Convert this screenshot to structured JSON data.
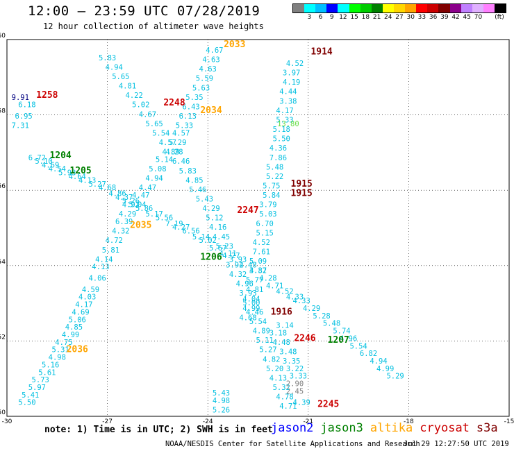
{
  "header": {
    "title": "12:00 – 23:59 UTC 07/28/2019",
    "subtitle": "12 hour collection of altimeter wave heights"
  },
  "colorbar": {
    "colors": [
      "#808080",
      "#00ffff",
      "#00bfff",
      "#0000ff",
      "#00ffff",
      "#00ff00",
      "#00cc00",
      "#008000",
      "#ffff00",
      "#ffd700",
      "#ffa500",
      "#ff0000",
      "#cc0000",
      "#800000",
      "#8b008b",
      "#c080ff",
      "#e0b0ff",
      "#ff80ff",
      "#000000"
    ],
    "ticks": [
      "3",
      "6",
      "9",
      "12",
      "15",
      "18",
      "21",
      "24",
      "27",
      "30",
      "33",
      "36",
      "39",
      "42",
      "45",
      "70"
    ],
    "unit": "(ft)"
  },
  "map": {
    "lat_ticks": [
      "60",
      "58",
      "56",
      "54",
      "52",
      "50"
    ],
    "lon_ticks": [
      "-30",
      "-27",
      "-24",
      "-21",
      "-18",
      "-15"
    ],
    "lon_range": [
      -30,
      -15
    ],
    "lat_range": [
      50,
      60
    ]
  },
  "chart_data": {
    "type": "scatter",
    "tracks": [
      {
        "name": "track-nw-se",
        "color": "#00bfe0",
        "points": [
          [
            -29.4,
            58.2,
            "6.18"
          ],
          [
            -29.5,
            57.9,
            "6.95"
          ],
          [
            -29.6,
            57.65,
            "7.31"
          ],
          [
            -29.1,
            56.8,
            "6.72"
          ],
          [
            -28.9,
            56.7,
            "5.10"
          ],
          [
            -28.7,
            56.6,
            "4.69"
          ],
          [
            -28.5,
            56.5,
            "4.54"
          ],
          [
            -28.2,
            56.4,
            "5.93"
          ],
          [
            -27.9,
            56.3,
            "4.64"
          ],
          [
            -27.6,
            56.2,
            "4.13"
          ],
          [
            -27.3,
            56.1,
            "5.27"
          ],
          [
            -27.0,
            56.0,
            "4.68"
          ],
          [
            -26.7,
            55.85,
            "4.86"
          ],
          [
            -26.5,
            55.75,
            "4.37"
          ],
          [
            -26.3,
            55.65,
            "5.26"
          ],
          [
            -26.1,
            55.55,
            "5.04"
          ],
          [
            -25.9,
            55.45,
            "5.86"
          ],
          [
            -25.6,
            55.3,
            "5.17"
          ],
          [
            -25.3,
            55.2,
            "5.56"
          ],
          [
            -25.0,
            55.05,
            "7.19"
          ],
          [
            -24.8,
            54.95,
            "4.27"
          ],
          [
            -24.5,
            54.85,
            "6.56"
          ],
          [
            -24.2,
            54.7,
            "5.14"
          ],
          [
            -24.0,
            54.6,
            "5.02"
          ],
          [
            -23.7,
            54.4,
            "5.67"
          ],
          [
            -23.4,
            54.25,
            "4.11"
          ],
          [
            -23.1,
            54.1,
            "3.93"
          ],
          [
            -22.8,
            53.95,
            "4.48"
          ],
          [
            -22.5,
            53.8,
            "4.32"
          ],
          [
            -22.2,
            53.6,
            "4.28"
          ],
          [
            -22.0,
            53.4,
            "4.71"
          ],
          [
            -21.7,
            53.25,
            "4.52"
          ],
          [
            -21.4,
            53.1,
            "4.33"
          ],
          [
            -21.2,
            53.0,
            "4.33"
          ],
          [
            -20.9,
            52.8,
            "4.29"
          ],
          [
            -20.6,
            52.6,
            "5.28"
          ],
          [
            -20.3,
            52.4,
            "5.48"
          ],
          [
            -20.0,
            52.2,
            "5.74"
          ],
          [
            -19.8,
            52.0,
            "4.96"
          ],
          [
            -19.5,
            51.8,
            "5.54"
          ],
          [
            -19.2,
            51.6,
            "6.82"
          ],
          [
            -18.9,
            51.4,
            "4.94"
          ],
          [
            -18.7,
            51.2,
            "4.99"
          ],
          [
            -18.4,
            51.0,
            "5.29"
          ]
        ]
      },
      {
        "name": "track-sw-ne",
        "color": "#00bfe0",
        "points": [
          [
            -29.4,
            50.3,
            "5.50"
          ],
          [
            -29.3,
            50.5,
            "5.41"
          ],
          [
            -29.1,
            50.7,
            "5.97"
          ],
          [
            -29.0,
            50.9,
            "5.73"
          ],
          [
            -28.8,
            51.1,
            "5.61"
          ],
          [
            -28.7,
            51.3,
            "5.16"
          ],
          [
            -28.5,
            51.5,
            "4.98"
          ],
          [
            -28.4,
            51.7,
            "5.31"
          ],
          [
            -28.3,
            51.9,
            "4.75"
          ],
          [
            -28.1,
            52.1,
            "4.99"
          ],
          [
            -28.0,
            52.3,
            "4.85"
          ],
          [
            -27.9,
            52.5,
            "5.06"
          ],
          [
            -27.8,
            52.7,
            "4.69"
          ],
          [
            -27.7,
            52.9,
            "4.17"
          ],
          [
            -27.6,
            53.1,
            "4.03"
          ],
          [
            -27.5,
            53.3,
            "4.59"
          ],
          [
            -27.3,
            53.6,
            "4.06"
          ],
          [
            -27.2,
            53.9,
            "4.13"
          ],
          [
            -27.1,
            54.1,
            "4.14"
          ],
          [
            -26.9,
            54.35,
            "5.81"
          ],
          [
            -26.8,
            54.6,
            "4.72"
          ],
          [
            -26.6,
            54.85,
            "4.32"
          ],
          [
            -26.5,
            55.1,
            "6.39"
          ],
          [
            -26.4,
            55.3,
            "4.29"
          ],
          [
            -26.3,
            55.55,
            "4.91"
          ],
          [
            -26.0,
            55.8,
            "4.47"
          ],
          [
            -25.8,
            56.0,
            "4.47"
          ],
          [
            -25.6,
            56.25,
            "4.94"
          ],
          [
            -25.5,
            56.5,
            "5.08"
          ],
          [
            -25.3,
            56.75,
            "5.14"
          ],
          [
            -25.1,
            56.95,
            "4.89"
          ],
          [
            -24.9,
            57.2,
            "5.29"
          ],
          [
            -24.8,
            57.45,
            "4.57"
          ],
          [
            -24.7,
            57.65,
            "5.33"
          ],
          [
            -24.6,
            57.9,
            "6.13"
          ],
          [
            -24.5,
            58.15,
            "6.43"
          ],
          [
            -24.4,
            58.4,
            "5.35"
          ],
          [
            -24.2,
            58.65,
            "5.63"
          ],
          [
            -24.1,
            58.9,
            "5.59"
          ],
          [
            -24.0,
            59.15,
            "4.63"
          ],
          [
            -23.9,
            59.4,
            "4.63"
          ],
          [
            -23.8,
            59.65,
            "4.67"
          ]
        ]
      },
      {
        "name": "track-ne-sw",
        "color": "#00bfe0",
        "points": [
          [
            -27.0,
            59.45,
            "5.83"
          ],
          [
            -26.8,
            59.2,
            "4.94"
          ],
          [
            -26.6,
            58.95,
            "5.65"
          ],
          [
            -26.4,
            58.7,
            "4.81"
          ],
          [
            -26.2,
            58.45,
            "4.22"
          ],
          [
            -26.0,
            58.2,
            "5.02"
          ],
          [
            -25.8,
            57.95,
            "4.67"
          ],
          [
            -25.6,
            57.7,
            "5.65"
          ],
          [
            -25.4,
            57.45,
            "5.54"
          ],
          [
            -25.2,
            57.2,
            "4.57"
          ],
          [
            -25.0,
            56.95,
            "4.28"
          ],
          [
            -24.8,
            56.7,
            "6.46"
          ],
          [
            -24.6,
            56.45,
            "5.83"
          ],
          [
            -24.4,
            56.2,
            "4.85"
          ],
          [
            -24.3,
            55.95,
            "5.46"
          ],
          [
            -24.1,
            55.7,
            "5.43"
          ],
          [
            -23.9,
            55.45,
            "4.29"
          ],
          [
            -23.8,
            55.2,
            "5.12"
          ],
          [
            -23.7,
            54.95,
            "4.16"
          ],
          [
            -23.6,
            54.7,
            "4.45"
          ],
          [
            -23.5,
            54.45,
            "5.23"
          ],
          [
            -23.3,
            54.2,
            "4.27"
          ],
          [
            -23.2,
            53.95,
            "3.92"
          ],
          [
            -23.1,
            53.7,
            "4.32"
          ],
          [
            -22.9,
            53.45,
            "4.96"
          ],
          [
            -22.8,
            53.2,
            "3.93"
          ],
          [
            -22.7,
            52.95,
            "5.00"
          ],
          [
            -22.6,
            52.7,
            "4.46"
          ],
          [
            -22.5,
            52.45,
            "5.54"
          ],
          [
            -22.4,
            52.2,
            "4.89"
          ],
          [
            -22.3,
            51.95,
            "5.11"
          ],
          [
            -22.2,
            51.7,
            "5.27"
          ],
          [
            -22.1,
            51.45,
            "4.82"
          ],
          [
            -22.0,
            51.2,
            "5.20"
          ],
          [
            -21.9,
            50.95,
            "4.13"
          ],
          [
            -21.8,
            50.7,
            "5.32"
          ],
          [
            -21.7,
            50.45,
            "4.78"
          ],
          [
            -21.6,
            50.2,
            "4.71"
          ]
        ]
      },
      {
        "name": "track-ascending-east",
        "color": "#00bfe0",
        "points": [
          [
            -21.4,
            59.3,
            "4.52"
          ],
          [
            -21.5,
            59.05,
            "3.97"
          ],
          [
            -21.5,
            58.8,
            "4.19"
          ],
          [
            -21.6,
            58.55,
            "4.44"
          ],
          [
            -21.6,
            58.3,
            "3.38"
          ],
          [
            -21.7,
            58.05,
            "4.17"
          ],
          [
            -21.7,
            57.8,
            "5.33"
          ],
          [
            -21.8,
            57.55,
            "5.18"
          ],
          [
            -21.8,
            57.3,
            "5.50"
          ],
          [
            -21.9,
            57.05,
            "4.36"
          ],
          [
            -21.9,
            56.8,
            "7.86"
          ],
          [
            -22.0,
            56.55,
            "5.48"
          ],
          [
            -22.0,
            56.3,
            "5.22"
          ],
          [
            -22.1,
            56.05,
            "5.75"
          ],
          [
            -22.1,
            55.8,
            "5.84"
          ],
          [
            -22.2,
            55.55,
            "3.79"
          ],
          [
            -22.2,
            55.3,
            "5.03"
          ],
          [
            -22.3,
            55.05,
            "6.70"
          ],
          [
            -22.3,
            54.8,
            "5.15"
          ],
          [
            -22.4,
            54.55,
            "4.52"
          ],
          [
            -22.4,
            54.3,
            "7.61"
          ],
          [
            -22.5,
            54.05,
            "5.09"
          ],
          [
            -22.5,
            53.8,
            "3.87"
          ],
          [
            -22.6,
            53.55,
            "5.77"
          ],
          [
            -22.6,
            53.3,
            "4.81"
          ],
          [
            -22.7,
            53.05,
            "4.04"
          ],
          [
            -22.7,
            52.8,
            "4.99"
          ],
          [
            -22.8,
            52.55,
            "4.68"
          ]
        ]
      }
    ],
    "passes": [
      {
        "label": "1258",
        "sat": "cryosat",
        "lon": -28.8,
        "lat": 58.45
      },
      {
        "label": "1204",
        "sat": "jason3",
        "lon": -28.4,
        "lat": 56.85
      },
      {
        "label": "1205",
        "sat": "jason3",
        "lon": -27.8,
        "lat": 56.45
      },
      {
        "label": "2033",
        "sat": "altika",
        "lon": -23.2,
        "lat": 59.8
      },
      {
        "label": "1914",
        "sat": "s3a",
        "lon": -20.6,
        "lat": 59.6
      },
      {
        "label": "2248",
        "sat": "cryosat",
        "lon": -25.0,
        "lat": 58.25
      },
      {
        "label": "2034",
        "sat": "altika",
        "lon": -23.9,
        "lat": 58.05
      },
      {
        "label": "1915",
        "sat": "s3a",
        "lon": -21.2,
        "lat": 56.1
      },
      {
        "label": "1915",
        "sat": "s3a",
        "lon": -21.2,
        "lat": 55.85
      },
      {
        "label": "2247",
        "sat": "cryosat",
        "lon": -22.8,
        "lat": 55.4
      },
      {
        "label": "2035",
        "sat": "altika",
        "lon": -26.0,
        "lat": 55.0
      },
      {
        "label": "1206",
        "sat": "jason3",
        "lon": -23.9,
        "lat": 54.15
      },
      {
        "label": "1916",
        "sat": "s3a",
        "lon": -21.8,
        "lat": 52.7
      },
      {
        "label": "2246",
        "sat": "cryosat",
        "lon": -21.1,
        "lat": 52.0
      },
      {
        "label": "1207",
        "sat": "jason3",
        "lon": -20.1,
        "lat": 51.95
      },
      {
        "label": "2036",
        "sat": "altika",
        "lon": -27.9,
        "lat": 51.7
      },
      {
        "label": "2245",
        "sat": "cryosat",
        "lon": -20.4,
        "lat": 50.25
      }
    ],
    "special_values": [
      {
        "text": "9.91",
        "color": "#000080",
        "lon": -29.6,
        "lat": 58.4
      },
      {
        "text": "13.80",
        "color": "#66dd44",
        "lon": -21.6,
        "lat": 57.7
      },
      {
        "text": "2.90",
        "color": "#808080",
        "lon": -21.4,
        "lat": 50.8
      },
      {
        "text": "2.45",
        "color": "#808080",
        "lon": -21.4,
        "lat": 50.6
      },
      {
        "text": "4.39",
        "color": "#00bfe0",
        "lon": -21.2,
        "lat": 50.3
      },
      {
        "text": "3.48",
        "color": "#00bfe0",
        "lon": -21.6,
        "lat": 51.65
      },
      {
        "text": "3.35",
        "color": "#00bfe0",
        "lon": -21.5,
        "lat": 51.4
      },
      {
        "text": "3.22",
        "color": "#00bfe0",
        "lon": -21.4,
        "lat": 51.2
      },
      {
        "text": "3.33",
        "color": "#00bfe0",
        "lon": -21.3,
        "lat": 51.0
      },
      {
        "text": "4.48",
        "color": "#00bfe0",
        "lon": -21.8,
        "lat": 51.9
      },
      {
        "text": "3.18",
        "color": "#00bfe0",
        "lon": -21.9,
        "lat": 52.15
      },
      {
        "text": "3.14",
        "color": "#00bfe0",
        "lon": -21.7,
        "lat": 52.35
      },
      {
        "text": "5.43",
        "color": "#00bfe0",
        "lon": -23.6,
        "lat": 50.55
      },
      {
        "text": "4.98",
        "color": "#00bfe0",
        "lon": -23.6,
        "lat": 50.35
      },
      {
        "text": "5.26",
        "color": "#00bfe0",
        "lon": -23.6,
        "lat": 50.1
      }
    ]
  },
  "footer": {
    "note": "note: 1) Time is in UTC; 2) SWH is in feet",
    "satellites": [
      {
        "name": "jason2",
        "color": "#0000ff"
      },
      {
        "name": "jason3",
        "color": "#008000"
      },
      {
        "name": "altika",
        "color": "#ffa500"
      },
      {
        "name": "cryosat",
        "color": "#cc0000"
      },
      {
        "name": "s3a",
        "color": "#800000"
      }
    ],
    "credit": "NOAA/NESDIS Center for Satellite Applications and Research",
    "timestamp": "Jul 29 12:27:50 UTC 2019"
  }
}
